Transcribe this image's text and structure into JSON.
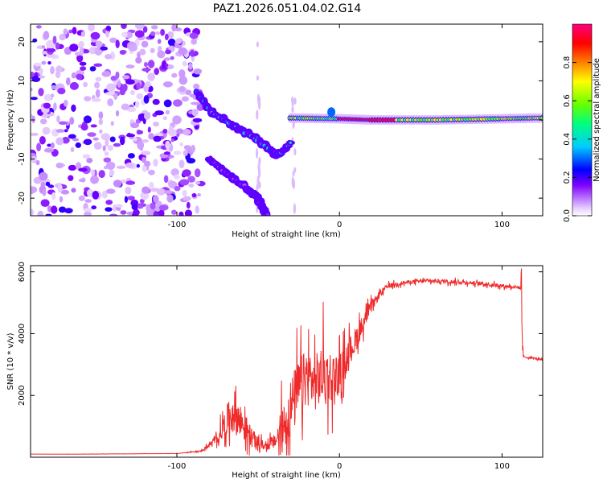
{
  "figure_title": "PAZ1.2026.051.04.02.G14",
  "chart_data": [
    {
      "type": "heatmap",
      "title": "PAZ1.2026.051.04.02.G14",
      "xlabel": "Height of straight line (km)",
      "ylabel": "Frequency (Hz)",
      "xlim": [
        -190,
        125
      ],
      "ylim": [
        -24.5,
        24.5
      ],
      "x_ticks": [
        -100,
        0,
        100
      ],
      "y_ticks": [
        -20,
        -10,
        0,
        10,
        20
      ],
      "colorbar": {
        "label": "Normalized spectral amplitude",
        "range": [
          0,
          1
        ],
        "ticks": [
          0.0,
          0.2,
          0.4,
          0.6,
          0.8
        ],
        "colormap": [
          "#ffffff",
          "#e6ccff",
          "#b266ff",
          "#7f00ff",
          "#0000ff",
          "#00ccff",
          "#00ff80",
          "#66ff00",
          "#ffff00",
          "#ff8000",
          "#ff0000",
          "#ff0080"
        ]
      },
      "noise_region": {
        "x_range": [
          -190,
          -85
        ],
        "y_range": [
          -24.5,
          24.5
        ],
        "amplitude": 0.1
      },
      "ridges": [
        {
          "name": "main-descending-trace",
          "points": [
            [
              -88,
              7
            ],
            [
              -78,
              2
            ],
            [
              -68,
              -1
            ],
            [
              -58,
              -3
            ],
            [
              -48,
              -6
            ],
            [
              -38,
              -9
            ],
            [
              -30,
              -6
            ]
          ],
          "amplitude": 0.35
        },
        {
          "name": "secondary-descending-trace",
          "points": [
            [
              -80,
              -10
            ],
            [
              -65,
              -15
            ],
            [
              -50,
              -20
            ],
            [
              -45,
              -24
            ]
          ],
          "amplitude": 0.15
        },
        {
          "name": "stable-carrier-line",
          "points": [
            [
              -30,
              0.5
            ],
            [
              0,
              0.3
            ],
            [
              20,
              0
            ],
            [
              60,
              0
            ],
            [
              100,
              0.3
            ],
            [
              125,
              0.5
            ]
          ],
          "amplitude": 0.85
        }
      ]
    },
    {
      "type": "line",
      "xlabel": "Height of straight line (km)",
      "ylabel": "SNR (10 * v/v)",
      "xlim": [
        -190,
        125
      ],
      "ylim": [
        0,
        6200
      ],
      "x_ticks": [
        -100,
        0,
        100
      ],
      "y_ticks": [
        2000,
        4000,
        6000
      ],
      "color": "#ee2a2a",
      "series": [
        {
          "name": "SNR",
          "x": [
            -190,
            -160,
            -130,
            -100,
            -85,
            -75,
            -70,
            -65,
            -60,
            -55,
            -50,
            -45,
            -40,
            -35,
            -30,
            -25,
            -20,
            -15,
            -10,
            -5,
            0,
            5,
            10,
            15,
            20,
            25,
            30,
            40,
            50,
            60,
            70,
            80,
            90,
            100,
            110,
            112,
            113,
            120,
            125
          ],
          "values": [
            100,
            100,
            110,
            120,
            200,
            600,
            1100,
            1500,
            1100,
            700,
            450,
            350,
            500,
            900,
            1600,
            2200,
            2600,
            2400,
            2700,
            2600,
            2700,
            3300,
            3800,
            4400,
            4900,
            5300,
            5550,
            5650,
            5700,
            5700,
            5680,
            5650,
            5600,
            5550,
            5500,
            5450,
            3250,
            3200,
            3150
          ],
          "spike_amplitude": [
            0,
            5,
            5,
            5,
            30,
            250,
            800,
            1200,
            900,
            600,
            300,
            200,
            400,
            1300,
            1600,
            1700,
            1500,
            1500,
            1700,
            1400,
            1000,
            800,
            700,
            450,
            300,
            200,
            120,
            100,
            100,
            100,
            100,
            100,
            100,
            100,
            80,
            80,
            50,
            50,
            50
          ]
        }
      ]
    }
  ]
}
